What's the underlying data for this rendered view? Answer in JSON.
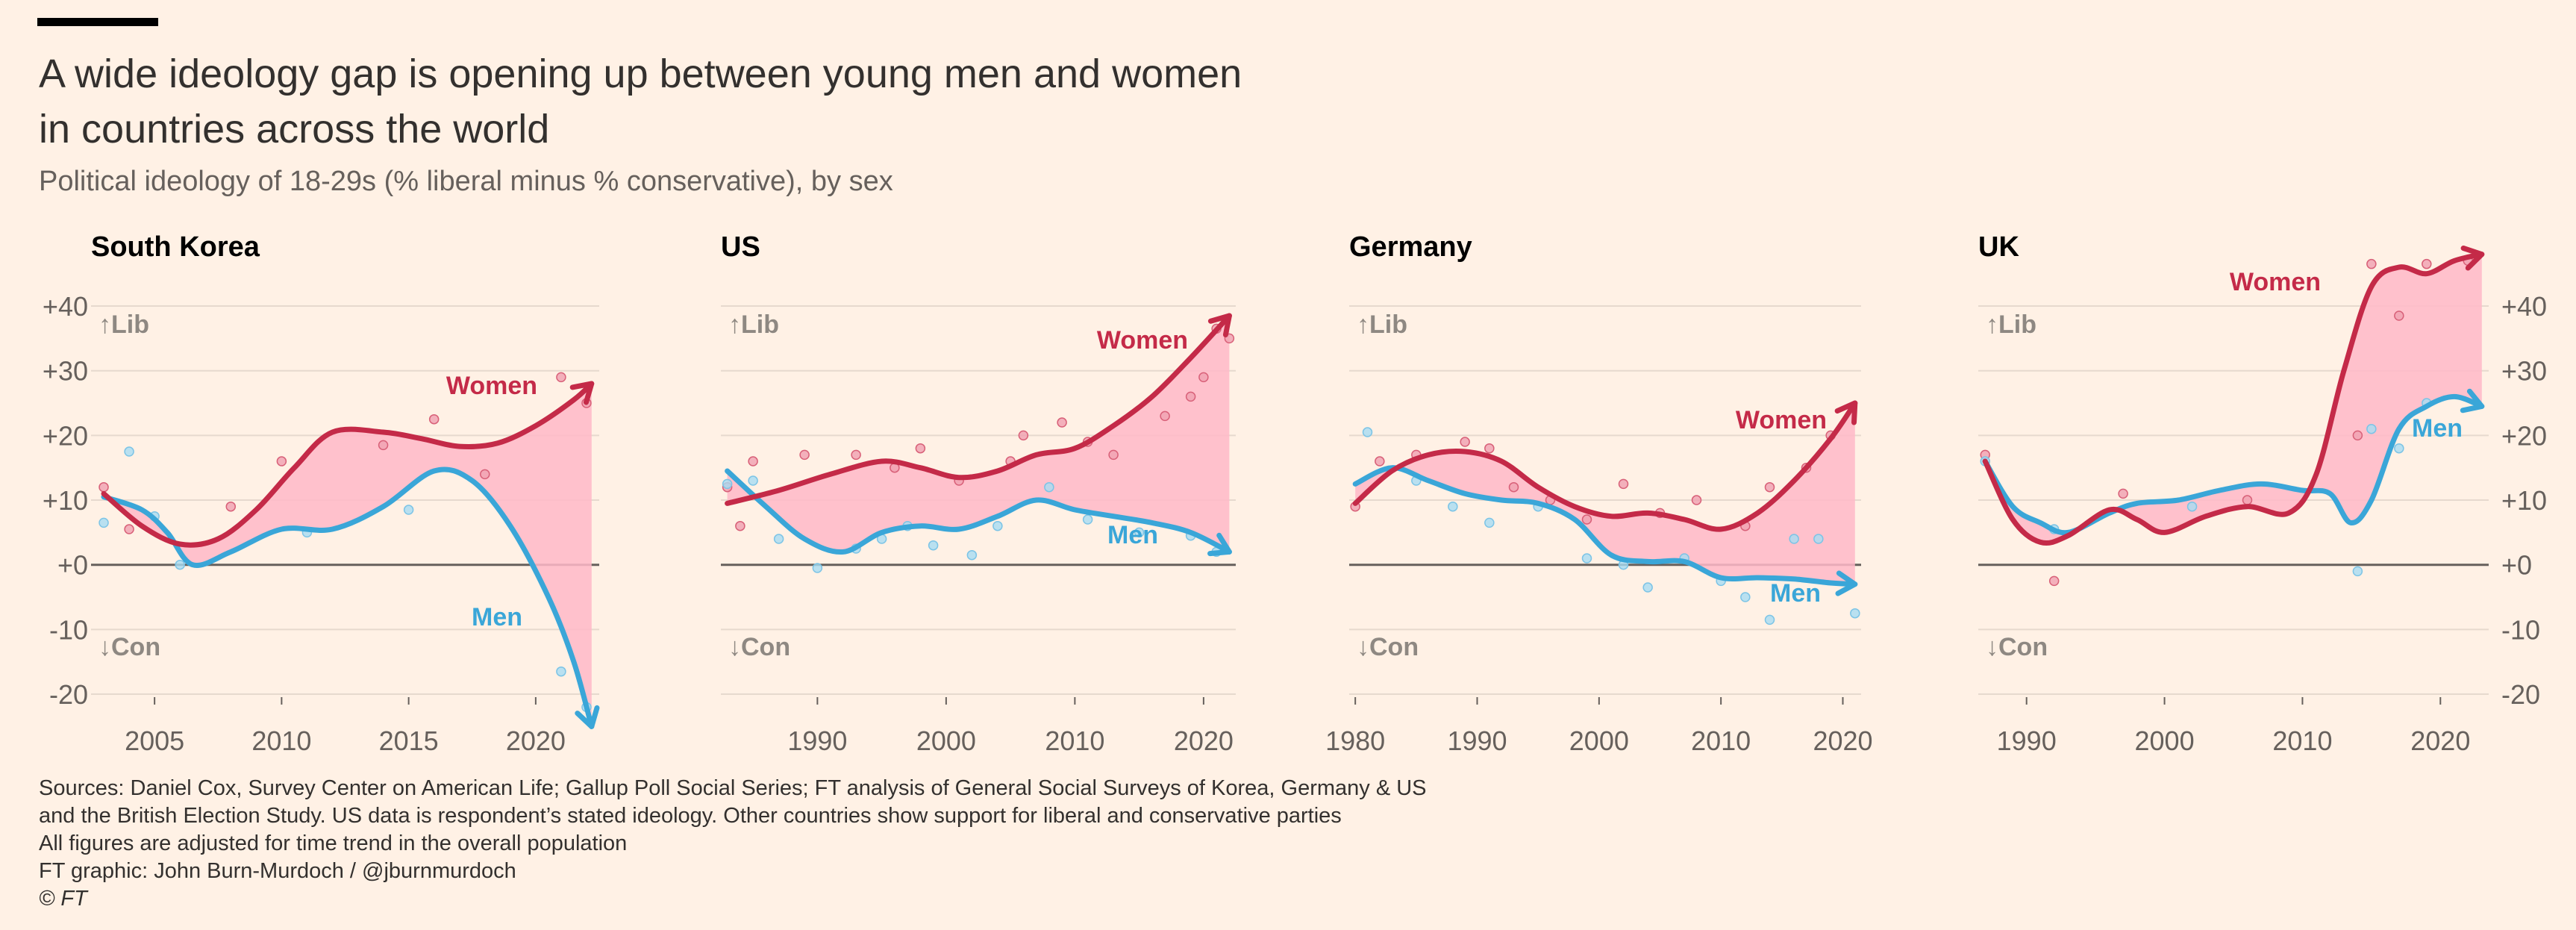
{
  "title_line1": "A wide ideology gap is opening up between young men and women",
  "title_line2": "in countries across the world",
  "subtitle": "Political ideology of 18-29s (% liberal minus % conservative), by sex",
  "sources": [
    "Sources: Daniel Cox, Survey Center on American Life; Gallup Poll Social Series; FT analysis of General Social Surveys of Korea, Germany & US",
    "and the British Election Study. US data is respondent’s stated ideology. Other countries show support for liberal and conservative parties",
    "All figures are adjusted for time trend in the overall population",
    "FT graphic: John Burn-Murdoch / @jburnmurdoch",
    "© FT"
  ],
  "colors": {
    "women": "#C42A48",
    "men": "#3AA6D8",
    "gap": "#FFB8C8",
    "axis": "#66605C",
    "grid": "#E6D9CE"
  },
  "chart_data": [
    {
      "type": "line",
      "panel": "South Korea",
      "ylim": [
        -25,
        42
      ],
      "y_ticks": [
        "+40",
        "+30",
        "+20",
        "+10",
        "+0",
        "-10",
        "-20"
      ],
      "y_tick_values": [
        40,
        30,
        20,
        10,
        0,
        -10,
        -20
      ],
      "y_axis_side": "left",
      "xlim": [
        2002.5,
        2022.5
      ],
      "x_ticks": [
        "2005",
        "2010",
        "2015",
        "2020"
      ],
      "x_tick_values": [
        2005,
        2010,
        2015,
        2020
      ],
      "lib_label": "↑Lib",
      "con_label": "↓Con",
      "series": [
        {
          "name": "Women",
          "x": [
            2003,
            2004.5,
            2006,
            2007.5,
            2009,
            2010.5,
            2012,
            2014,
            2015.5,
            2017,
            2018.5,
            2020,
            2021.5,
            2022.2
          ],
          "values": [
            11,
            6,
            3.2,
            4,
            8.5,
            15,
            20.5,
            20.5,
            19.5,
            18.3,
            18.8,
            21.5,
            25.5,
            28
          ]
        },
        {
          "name": "Men",
          "x": [
            2003,
            2004.5,
            2005.5,
            2006.5,
            2008,
            2010,
            2012,
            2014,
            2016,
            2017.5,
            2019,
            2020.5,
            2021.5,
            2022.2
          ],
          "values": [
            10.5,
            8.5,
            5,
            0,
            2,
            5.5,
            5.5,
            9,
            14.5,
            13,
            6,
            -5,
            -15,
            -25
          ]
        }
      ],
      "scatter_women": [
        [
          2003,
          12
        ],
        [
          2004,
          5.5
        ],
        [
          2008,
          9
        ],
        [
          2010,
          16
        ],
        [
          2014,
          18.5
        ],
        [
          2016,
          22.5
        ],
        [
          2018,
          14
        ],
        [
          2021,
          29
        ],
        [
          2022,
          25
        ]
      ],
      "scatter_men": [
        [
          2003,
          6.5
        ],
        [
          2004,
          17.5
        ],
        [
          2005,
          7.5
        ],
        [
          2006,
          0
        ],
        [
          2011,
          5
        ],
        [
          2015,
          8.5
        ],
        [
          2021,
          -16.5
        ],
        [
          2022,
          -22
        ]
      ],
      "labels": {
        "women": "Women",
        "men": "Men"
      }
    },
    {
      "type": "line",
      "panel": "US",
      "ylim": [
        -25,
        42
      ],
      "y_ticks": [],
      "y_tick_values": [
        40,
        30,
        20,
        10,
        0,
        -10,
        -20
      ],
      "y_axis_side": "none",
      "xlim": [
        1982.5,
        2022.5
      ],
      "x_ticks": [
        "1990",
        "2000",
        "2010",
        "2020"
      ],
      "x_tick_values": [
        1990,
        2000,
        2010,
        2020
      ],
      "lib_label": "↑Lib",
      "con_label": "↓Con",
      "series": [
        {
          "name": "Women",
          "x": [
            1983,
            1987,
            1991,
            1995,
            1998,
            2001,
            2004,
            2007,
            2010,
            2013,
            2016,
            2019,
            2022
          ],
          "values": [
            9.5,
            11.5,
            14,
            16,
            15,
            13.5,
            14.5,
            17,
            18,
            21.5,
            26,
            32,
            38.5
          ]
        },
        {
          "name": "Men",
          "x": [
            1983,
            1986,
            1989,
            1992,
            1995,
            1998,
            2001,
            2004,
            2007,
            2010,
            2013,
            2016,
            2019,
            2022
          ],
          "values": [
            14.5,
            9,
            4,
            2,
            5,
            6,
            5.5,
            7.5,
            10,
            8.5,
            7.5,
            6.5,
            5,
            2
          ]
        }
      ],
      "scatter_women": [
        [
          1983,
          12
        ],
        [
          1984,
          6
        ],
        [
          1985,
          16
        ],
        [
          1989,
          17
        ],
        [
          1993,
          17
        ],
        [
          1996,
          15
        ],
        [
          1998,
          18
        ],
        [
          2001,
          13
        ],
        [
          2005,
          16
        ],
        [
          2006,
          20
        ],
        [
          2009,
          22
        ],
        [
          2011,
          19
        ],
        [
          2013,
          17
        ],
        [
          2017,
          23
        ],
        [
          2019,
          26
        ],
        [
          2020,
          29
        ],
        [
          2021,
          36.5
        ],
        [
          2022,
          35
        ]
      ],
      "scatter_men": [
        [
          1983,
          12.5
        ],
        [
          1985,
          13
        ],
        [
          1987,
          4
        ],
        [
          1990,
          -0.5
        ],
        [
          1993,
          2.5
        ],
        [
          1995,
          4
        ],
        [
          1997,
          6
        ],
        [
          1999,
          3
        ],
        [
          2002,
          1.5
        ],
        [
          2004,
          6
        ],
        [
          2008,
          12
        ],
        [
          2011,
          7
        ],
        [
          2015,
          5
        ],
        [
          2019,
          4.5
        ],
        [
          2021,
          2
        ]
      ],
      "labels": {
        "women": "Women",
        "men": "Men"
      }
    },
    {
      "type": "line",
      "panel": "Germany",
      "ylim": [
        -25,
        42
      ],
      "y_ticks": [],
      "y_tick_values": [
        40,
        30,
        20,
        10,
        0,
        -10,
        -20
      ],
      "y_axis_side": "none",
      "xlim": [
        1979.5,
        2021.5
      ],
      "x_ticks": [
        "1980",
        "1990",
        "2000",
        "2010",
        "2020"
      ],
      "x_tick_values": [
        1980,
        1990,
        2000,
        2010,
        2020
      ],
      "lib_label": "↑Lib",
      "con_label": "↓Con",
      "series": [
        {
          "name": "Women",
          "x": [
            1980,
            1983,
            1986,
            1989,
            1992,
            1995,
            1998,
            2001,
            2004,
            2007,
            2010,
            2013,
            2016,
            2019,
            2021
          ],
          "values": [
            9.5,
            14.5,
            17,
            17.5,
            16,
            12,
            9,
            7.5,
            8,
            7,
            5.5,
            8,
            13,
            19.5,
            25
          ]
        },
        {
          "name": "Men",
          "x": [
            1980,
            1983,
            1986,
            1989,
            1992,
            1995,
            1998,
            2001,
            2004,
            2007,
            2010,
            2013,
            2016,
            2019,
            2021
          ],
          "values": [
            12.5,
            15,
            13,
            11,
            10,
            9.5,
            7,
            1.5,
            0.5,
            0.5,
            -2,
            -2,
            -2.2,
            -2.8,
            -3
          ]
        }
      ],
      "scatter_women": [
        [
          1980,
          9
        ],
        [
          1982,
          16
        ],
        [
          1985,
          17
        ],
        [
          1989,
          19
        ],
        [
          1991,
          18
        ],
        [
          1993,
          12
        ],
        [
          1996,
          10
        ],
        [
          1999,
          7
        ],
        [
          2002,
          12.5
        ],
        [
          2005,
          8
        ],
        [
          2008,
          10
        ],
        [
          2012,
          6
        ],
        [
          2014,
          12
        ],
        [
          2017,
          15
        ],
        [
          2019,
          20
        ]
      ],
      "scatter_men": [
        [
          1981,
          20.5
        ],
        [
          1985,
          13
        ],
        [
          1988,
          9
        ],
        [
          1991,
          6.5
        ],
        [
          1995,
          9
        ],
        [
          1999,
          1
        ],
        [
          2002,
          0
        ],
        [
          2004,
          -3.5
        ],
        [
          2007,
          1
        ],
        [
          2010,
          -2.5
        ],
        [
          2012,
          -5
        ],
        [
          2014,
          -8.5
        ],
        [
          2016,
          4
        ],
        [
          2018,
          4
        ],
        [
          2021,
          -7.5
        ]
      ],
      "labels": {
        "women": "Women",
        "men": "Men"
      }
    },
    {
      "type": "line",
      "panel": "UK",
      "ylim": [
        -25,
        42
      ],
      "y_ticks": [
        "+40",
        "+30",
        "+20",
        "+10",
        "+0",
        "-10",
        "-20"
      ],
      "y_tick_values": [
        40,
        30,
        20,
        10,
        0,
        -10,
        -20
      ],
      "y_axis_side": "right",
      "xlim": [
        1986.5,
        2023.5
      ],
      "x_ticks": [
        "1990",
        "2000",
        "2010",
        "2020"
      ],
      "x_tick_values": [
        1990,
        2000,
        2010,
        2020
      ],
      "lib_label": "↑Lib",
      "con_label": "↓Con",
      "series": [
        {
          "name": "Women",
          "x": [
            1987,
            1989,
            1991,
            1993,
            1996,
            1998,
            2000,
            2003,
            2006,
            2009,
            2011,
            2013,
            2015,
            2017,
            2019,
            2021,
            2023
          ],
          "values": [
            16,
            7,
            3.5,
            4.5,
            8.5,
            7,
            5,
            7.5,
            9,
            8,
            14,
            30,
            43,
            46,
            45,
            47,
            48
          ]
        },
        {
          "name": "Men",
          "x": [
            1987,
            1989,
            1991,
            1993,
            1996,
            1998,
            2001,
            2004,
            2007,
            2010,
            2012,
            2013.5,
            2015,
            2017,
            2019,
            2021,
            2023
          ],
          "values": [
            16,
            9,
            6.5,
            5,
            8,
            9.5,
            10,
            11.5,
            12.5,
            11.5,
            11,
            6.5,
            10,
            21,
            24.5,
            26,
            24.5
          ]
        }
      ],
      "scatter_women": [
        [
          1987,
          17
        ],
        [
          1992,
          -2.5
        ],
        [
          1997,
          11
        ],
        [
          2006,
          10
        ],
        [
          2014,
          20
        ],
        [
          2015,
          46.5
        ],
        [
          2017,
          38.5
        ],
        [
          2019,
          46.5
        ],
        [
          2022,
          47
        ]
      ],
      "scatter_men": [
        [
          1987,
          16
        ],
        [
          1992,
          5.5
        ],
        [
          2002,
          9
        ],
        [
          2014,
          -1
        ],
        [
          2015,
          21
        ],
        [
          2017,
          18
        ],
        [
          2019,
          25
        ]
      ],
      "labels": {
        "women": "Women",
        "men": "Men"
      }
    }
  ]
}
